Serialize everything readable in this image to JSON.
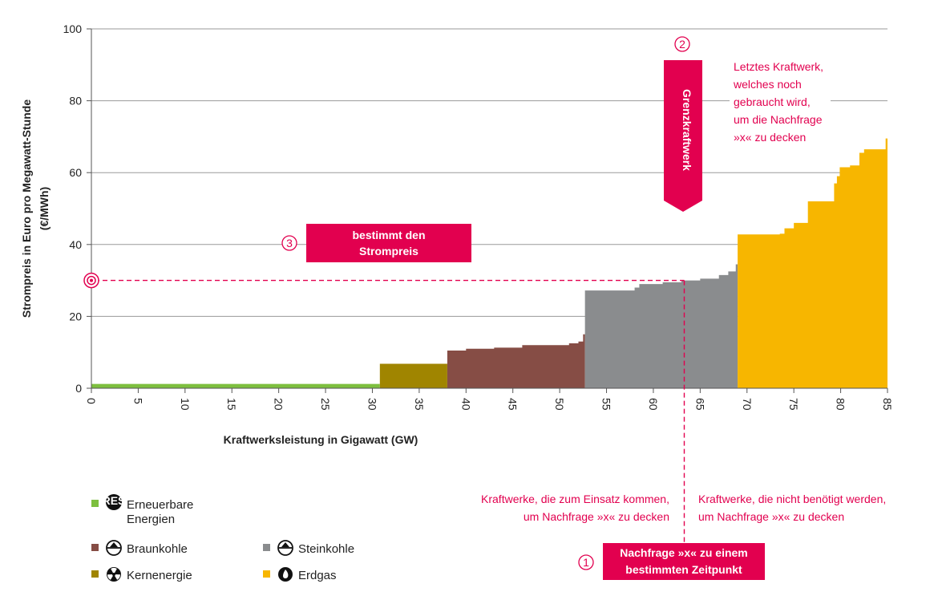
{
  "chart_data": {
    "type": "area",
    "ylabel_line1": "Strompreis in Euro pro Megawatt-Stunde",
    "ylabel_line2": "(€/MWh)",
    "xlabel": "Kraftwerksleistung in Gigawatt (GW)",
    "xlim": [
      0,
      85
    ],
    "ylim": [
      0,
      100
    ],
    "xticks": [
      0,
      5,
      10,
      15,
      20,
      25,
      30,
      35,
      40,
      45,
      50,
      55,
      60,
      65,
      70,
      75,
      80,
      85
    ],
    "yticks": [
      0,
      20,
      40,
      60,
      80,
      100
    ],
    "grid": "horizontal",
    "series": [
      {
        "name": "Erneuerbare Energien",
        "color": "#7dbf3f",
        "points": [
          [
            0,
            1.2
          ],
          [
            30.8,
            1.2
          ]
        ]
      },
      {
        "name": "Kernenergie",
        "color": "#a08500",
        "points": [
          [
            30.8,
            6.8
          ],
          [
            38.0,
            6.8
          ]
        ]
      },
      {
        "name": "Braunkohle",
        "color": "#864d45",
        "points": [
          [
            38.0,
            10.5
          ],
          [
            40.0,
            10.5
          ],
          [
            40.0,
            11.0
          ],
          [
            43.0,
            11.0
          ],
          [
            43.0,
            11.3
          ],
          [
            46.0,
            11.3
          ],
          [
            46.0,
            12.0
          ],
          [
            51.0,
            12.0
          ],
          [
            51.0,
            12.5
          ],
          [
            52.0,
            12.5
          ],
          [
            52.0,
            13.0
          ],
          [
            52.5,
            13.0
          ],
          [
            52.5,
            15.0
          ],
          [
            52.7,
            15.0
          ]
        ]
      },
      {
        "name": "Steinkohle",
        "color": "#8a8c8e",
        "points": [
          [
            52.7,
            27.2
          ],
          [
            58.0,
            27.2
          ],
          [
            58.0,
            28.0
          ],
          [
            58.5,
            28.0
          ],
          [
            58.5,
            29.0
          ],
          [
            61.0,
            29.0
          ],
          [
            61.0,
            29.5
          ],
          [
            63.0,
            29.5
          ],
          [
            63.0,
            30.0
          ],
          [
            65.0,
            30.0
          ],
          [
            65.0,
            30.5
          ],
          [
            67.0,
            30.5
          ],
          [
            67.0,
            31.5
          ],
          [
            68.0,
            31.5
          ],
          [
            68.0,
            32.5
          ],
          [
            68.8,
            32.5
          ],
          [
            68.8,
            34.5
          ],
          [
            69.0,
            34.5
          ]
        ]
      },
      {
        "name": "Erdgas",
        "color": "#f7b600",
        "points": [
          [
            69.0,
            42.8
          ],
          [
            73.5,
            42.8
          ],
          [
            73.5,
            43.0
          ],
          [
            74.0,
            43.0
          ],
          [
            74.0,
            44.5
          ],
          [
            75.0,
            44.5
          ],
          [
            75.0,
            46.0
          ],
          [
            76.5,
            46.0
          ],
          [
            76.5,
            52.0
          ],
          [
            79.3,
            52.0
          ],
          [
            79.3,
            57.0
          ],
          [
            79.6,
            57.0
          ],
          [
            79.6,
            59.0
          ],
          [
            79.9,
            59.0
          ],
          [
            79.9,
            61.5
          ],
          [
            81.0,
            61.5
          ],
          [
            81.0,
            62.0
          ],
          [
            82.0,
            62.0
          ],
          [
            82.0,
            65.5
          ],
          [
            82.5,
            65.5
          ],
          [
            82.5,
            66.5
          ],
          [
            84.8,
            66.5
          ],
          [
            84.8,
            69.5
          ],
          [
            85.0,
            69.5
          ]
        ]
      }
    ],
    "demand_x": 63.3,
    "price_y": 30.0,
    "annotations": {
      "marker1": "1",
      "marker2": "2",
      "marker3": "3",
      "demand_box_line1": "Nachfrage »x« zu einem",
      "demand_box_line2": "bestimmten Zeitpunkt",
      "grenz_label": "Grenzkraftwerk",
      "price_box_line1": "bestimmt den",
      "price_box_line2": "Strompreis",
      "letztes_lines": [
        "Letztes Kraftwerk,",
        "welches noch",
        "gebraucht wird,",
        "um die Nachfrage",
        "»x« zu decken"
      ],
      "left_note_lines": [
        "Kraftwerke, die zum Einsatz kommen,",
        "um Nachfrage »x« zu decken"
      ],
      "right_note_lines": [
        "Kraftwerke, die nicht benötigt werden,",
        "um Nachfrage »x« zu decken"
      ]
    },
    "legend": [
      {
        "label_lines": [
          "Erneuerbare",
          "Energien"
        ],
        "color": "#7dbf3f",
        "icon": "res-badge-icon",
        "badge_text": "RES"
      },
      {
        "label_lines": [
          "Braunkohle"
        ],
        "color": "#864d45",
        "icon": "coal-mine-icon"
      },
      {
        "label_lines": [
          "Kernenergie"
        ],
        "color": "#a08500",
        "icon": "radiation-icon"
      },
      {
        "label_lines": [
          "Steinkohle"
        ],
        "color": "#8a8c8e",
        "icon": "coal-mine-icon"
      },
      {
        "label_lines": [
          "Erdgas"
        ],
        "color": "#f7b600",
        "icon": "flame-icon"
      }
    ],
    "accent_color": "#e2004f"
  }
}
